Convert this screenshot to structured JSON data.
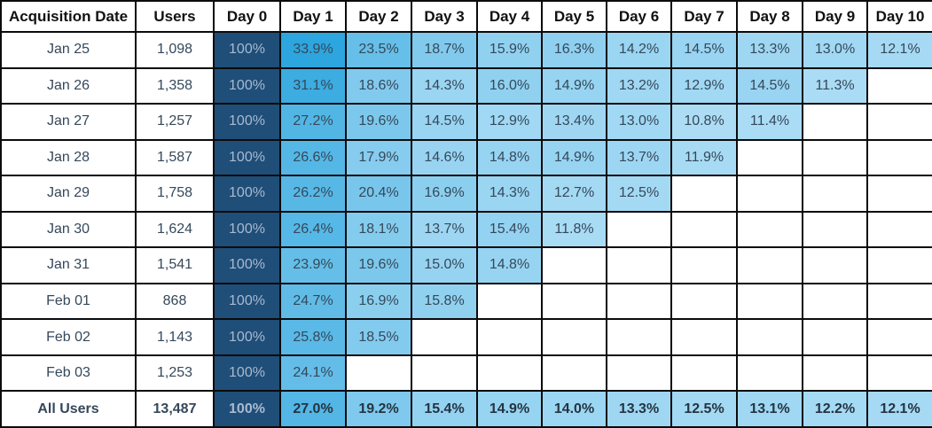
{
  "chart_data": {
    "type": "heatmap",
    "columns": [
      "Acquisition Date",
      "Users",
      "Day 0",
      "Day 1",
      "Day 2",
      "Day 3",
      "Day 4",
      "Day 5",
      "Day 6",
      "Day 7",
      "Day 8",
      "Day 9",
      "Day 10"
    ],
    "rows": [
      {
        "date": "Jan 25",
        "users": 1098,
        "retention": [
          100,
          33.9,
          23.5,
          18.7,
          15.9,
          16.3,
          14.2,
          14.5,
          13.3,
          13.0,
          12.1
        ],
        "is_total": false
      },
      {
        "date": "Jan 26",
        "users": 1358,
        "retention": [
          100,
          31.1,
          18.6,
          14.3,
          16.0,
          14.9,
          13.2,
          12.9,
          14.5,
          11.3,
          null
        ],
        "is_total": false
      },
      {
        "date": "Jan 27",
        "users": 1257,
        "retention": [
          100,
          27.2,
          19.6,
          14.5,
          12.9,
          13.4,
          13.0,
          10.8,
          11.4,
          null,
          null
        ],
        "is_total": false
      },
      {
        "date": "Jan 28",
        "users": 1587,
        "retention": [
          100,
          26.6,
          17.9,
          14.6,
          14.8,
          14.9,
          13.7,
          11.9,
          null,
          null,
          null
        ],
        "is_total": false
      },
      {
        "date": "Jan 29",
        "users": 1758,
        "retention": [
          100,
          26.2,
          20.4,
          16.9,
          14.3,
          12.7,
          12.5,
          null,
          null,
          null,
          null
        ],
        "is_total": false
      },
      {
        "date": "Jan 30",
        "users": 1624,
        "retention": [
          100,
          26.4,
          18.1,
          13.7,
          15.4,
          11.8,
          null,
          null,
          null,
          null,
          null
        ],
        "is_total": false
      },
      {
        "date": "Jan 31",
        "users": 1541,
        "retention": [
          100,
          23.9,
          19.6,
          15.0,
          14.8,
          null,
          null,
          null,
          null,
          null,
          null
        ],
        "is_total": false
      },
      {
        "date": "Feb 01",
        "users": 868,
        "retention": [
          100,
          24.7,
          16.9,
          15.8,
          null,
          null,
          null,
          null,
          null,
          null,
          null
        ],
        "is_total": false
      },
      {
        "date": "Feb 02",
        "users": 1143,
        "retention": [
          100,
          25.8,
          18.5,
          null,
          null,
          null,
          null,
          null,
          null,
          null,
          null
        ],
        "is_total": false
      },
      {
        "date": "Feb 03",
        "users": 1253,
        "retention": [
          100,
          24.1,
          null,
          null,
          null,
          null,
          null,
          null,
          null,
          null,
          null
        ],
        "is_total": false
      },
      {
        "date": "All Users",
        "users": 13487,
        "retention": [
          100,
          27.0,
          19.2,
          15.4,
          14.9,
          14.0,
          13.3,
          12.5,
          13.1,
          12.2,
          12.1
        ],
        "is_total": true
      }
    ],
    "legend_position": "none",
    "grid": true
  },
  "colors": {
    "day0_bg": "#1F4E79",
    "day0_text": "#A9BACF",
    "heat_high": "#2CA5DE",
    "heat_low": "#ACDDF5",
    "heat_scale_min": 11,
    "heat_scale_max": 34,
    "cell_text": "#35485A",
    "border": "#0B0B0B",
    "header_text": "#111111"
  }
}
